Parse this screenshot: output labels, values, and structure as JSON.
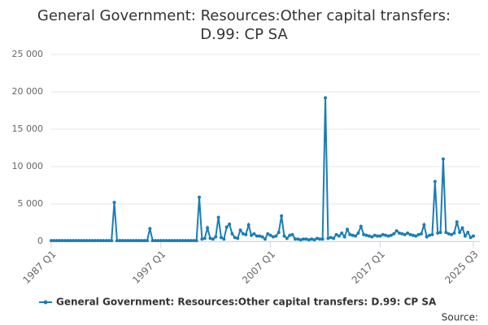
{
  "chart_data": {
    "type": "line",
    "title": "General Government: Resources:Other capital transfers: D.99: CP SA",
    "source": "Source:",
    "categories": [
      "1987 Q1",
      null,
      null,
      null,
      null,
      null,
      null,
      null,
      null,
      null,
      null,
      null,
      null,
      null,
      null,
      null,
      null,
      null,
      null,
      null,
      null,
      null,
      null,
      null,
      null,
      null,
      null,
      null,
      null,
      null,
      null,
      null,
      null,
      null,
      null,
      null,
      null,
      null,
      null,
      null,
      "1997 Q1",
      null,
      null,
      null,
      null,
      null,
      null,
      null,
      null,
      null,
      null,
      null,
      null,
      null,
      null,
      null,
      null,
      null,
      null,
      null,
      null,
      null,
      null,
      null,
      null,
      null,
      null,
      null,
      null,
      null,
      null,
      null,
      null,
      null,
      null,
      null,
      null,
      null,
      null,
      null,
      "2007 Q1",
      null,
      null,
      null,
      null,
      null,
      null,
      null,
      null,
      null,
      null,
      null,
      null,
      null,
      null,
      null,
      null,
      null,
      null,
      null,
      null,
      null,
      null,
      null,
      null,
      null,
      null,
      null,
      null,
      null,
      null,
      null,
      null,
      null,
      null,
      null,
      null,
      null,
      null,
      null,
      "2017 Q1",
      null,
      null,
      null,
      null,
      null,
      null,
      null,
      null,
      null,
      null,
      null,
      null,
      null,
      null,
      null,
      null,
      null,
      null,
      null,
      null,
      null,
      null,
      null,
      null,
      null,
      null,
      null,
      null,
      null,
      null,
      null,
      null,
      null,
      "2025 Q3"
    ],
    "series": [
      {
        "name": "General Government: Resources:Other capital transfers: D.99: CP SA",
        "color": "#1a7db6",
        "values": [
          100,
          100,
          100,
          100,
          100,
          100,
          100,
          100,
          100,
          100,
          100,
          100,
          100,
          100,
          100,
          100,
          100,
          100,
          100,
          100,
          100,
          100,
          100,
          5200,
          100,
          100,
          100,
          100,
          100,
          100,
          100,
          100,
          100,
          100,
          100,
          100,
          1700,
          100,
          100,
          100,
          100,
          100,
          100,
          100,
          100,
          100,
          100,
          100,
          100,
          100,
          100,
          100,
          100,
          100,
          5900,
          300,
          400,
          1800,
          400,
          300,
          600,
          3200,
          500,
          300,
          1900,
          2300,
          1000,
          500,
          400,
          1500,
          1000,
          900,
          2200,
          800,
          1000,
          700,
          700,
          600,
          300,
          1000,
          800,
          600,
          700,
          1200,
          3400,
          700,
          400,
          800,
          900,
          300,
          300,
          200,
          300,
          300,
          200,
          300,
          200,
          400,
          300,
          300,
          19200,
          400,
          500,
          400,
          900,
          700,
          1100,
          600,
          1600,
          900,
          800,
          700,
          1100,
          2000,
          900,
          800,
          700,
          600,
          800,
          700,
          700,
          900,
          800,
          700,
          800,
          1000,
          1400,
          1100,
          1000,
          900,
          1100,
          900,
          800,
          700,
          900,
          1000,
          2200,
          600,
          800,
          900,
          8000,
          1100,
          1200,
          11000,
          1200,
          1000,
          900,
          1100,
          2600,
          1200,
          1800,
          700,
          1200,
          500,
          700
        ]
      }
    ],
    "ylim": [
      0,
      25000
    ],
    "yticks": [
      0,
      {
        "value": 5000,
        "label": "5 000"
      },
      {
        "value": 10000,
        "label": "10 000"
      },
      {
        "value": 15000,
        "label": "15 000"
      },
      {
        "value": 20000,
        "label": "20 000"
      },
      {
        "value": 25000,
        "label": "25 000"
      }
    ],
    "grid": true
  }
}
